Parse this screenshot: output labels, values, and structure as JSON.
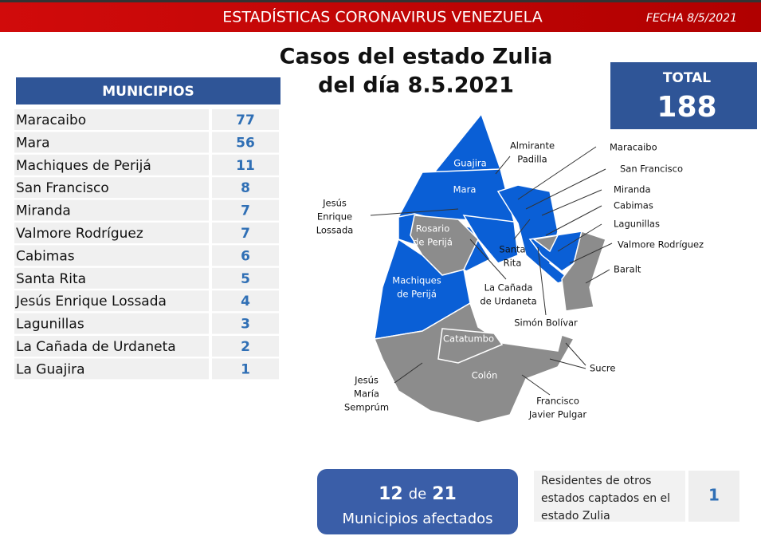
{
  "header": {
    "title": "ESTADÍSTICAS CORONAVIRUS VENEZUELA",
    "date": "FECHA 8/5/2021"
  },
  "main_title": [
    "Casos del estado Zulia",
    "del día 8.5.2021"
  ],
  "table": {
    "header": "MUNICIPIOS",
    "rows": [
      [
        "Maracaibo",
        77
      ],
      [
        "Mara",
        56
      ],
      [
        "Machiques de Perijá",
        11
      ],
      [
        "San Francisco",
        8
      ],
      [
        "Miranda",
        7
      ],
      [
        "Valmore Rodríguez",
        7
      ],
      [
        "Cabimas",
        6
      ],
      [
        "Santa Rita",
        5
      ],
      [
        "Jesús Enrique Lossada",
        4
      ],
      [
        "Lagunillas",
        3
      ],
      [
        "La Cañada de Urdaneta",
        2
      ],
      [
        "La Guajira",
        1
      ]
    ]
  },
  "total": {
    "label": "TOTAL",
    "value": 188
  },
  "map": {
    "labels": [
      {
        "lines": [
          "Guajira"
        ]
      },
      {
        "lines": [
          "Mara"
        ]
      },
      {
        "lines": [
          "Rosario",
          "de Perijá"
        ]
      },
      {
        "lines": [
          "Machiques",
          "de Perijá"
        ]
      },
      {
        "lines": [
          "Catatumbo"
        ]
      },
      {
        "lines": [
          "Colón"
        ]
      },
      {
        "lines": [
          "Almirante",
          "Padilla"
        ]
      },
      {
        "lines": [
          "Maracaibo"
        ]
      },
      {
        "lines": [
          "San Francisco"
        ]
      },
      {
        "lines": [
          "Miranda"
        ]
      },
      {
        "lines": [
          "Cabimas"
        ]
      },
      {
        "lines": [
          "Lagunillas"
        ]
      },
      {
        "lines": [
          "Valmore Rodríguez"
        ]
      },
      {
        "lines": [
          "Baralt"
        ]
      },
      {
        "lines": [
          "Jesús",
          "Enrique",
          "Lossada"
        ]
      },
      {
        "lines": [
          "Santa",
          "Rita"
        ]
      },
      {
        "lines": [
          "La Cañada",
          "de Urdaneta"
        ]
      },
      {
        "lines": [
          "Simón Bolívar"
        ]
      },
      {
        "lines": [
          "Sucre"
        ]
      },
      {
        "lines": [
          "Jesús",
          "María",
          "Semprúm"
        ]
      },
      {
        "lines": [
          "Francisco",
          "Javier Pulgar"
        ]
      }
    ]
  },
  "affected": {
    "count": 12,
    "connector": "de",
    "of": 21,
    "label": "Municipios afectados"
  },
  "residents": {
    "text": [
      "Residentes de otros",
      "estados captados en el",
      "estado Zulia"
    ],
    "value": 1
  }
}
